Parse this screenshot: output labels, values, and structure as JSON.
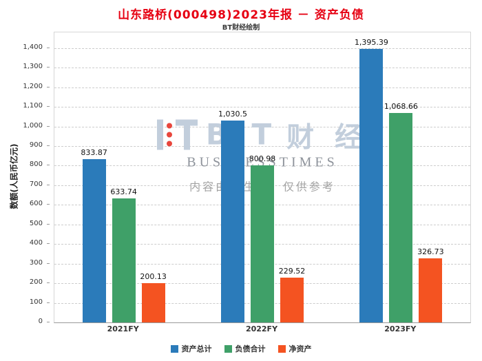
{
  "title": "山东路桥(000498)2023年报 － 资产负债",
  "subtitle": "BT财经绘制",
  "chart_data": {
    "type": "bar",
    "title": "山东路桥(000498)2023年报 － 资产负债",
    "subtitle": "BT财经绘制",
    "categories": [
      "2021FY",
      "2022FY",
      "2023FY"
    ],
    "series": [
      {
        "name": "资产总计",
        "color": "#2b7bba",
        "values": [
          833.87,
          1030.5,
          1395.39
        ],
        "labels": [
          "833.87",
          "1,030.5",
          "1,395.39"
        ]
      },
      {
        "name": "负债合计",
        "color": "#3fa068",
        "values": [
          633.74,
          800.98,
          1068.66
        ],
        "labels": [
          "633.74",
          "800.98",
          "1,068.66"
        ]
      },
      {
        "name": "净资产",
        "color": "#f45321",
        "values": [
          200.13,
          229.52,
          326.73
        ],
        "labels": [
          "200.13",
          "229.52",
          "326.73"
        ]
      }
    ],
    "xlabel": "",
    "ylabel": "数额(人民币亿元)",
    "ylim": [
      0,
      1480
    ],
    "ytick_step": 100,
    "ytick_max": 1400,
    "grid": true,
    "legend_position": "bottom"
  },
  "watermark": {
    "brand_bt": "B T",
    "brand_cn": "财 经",
    "brand_en": "BUSINESSTIMES",
    "disclaimer": "内容由AI生成，仅供参考"
  },
  "colors": {
    "title": "#e60012",
    "grid": "#cccccc",
    "axis": "#999999"
  }
}
